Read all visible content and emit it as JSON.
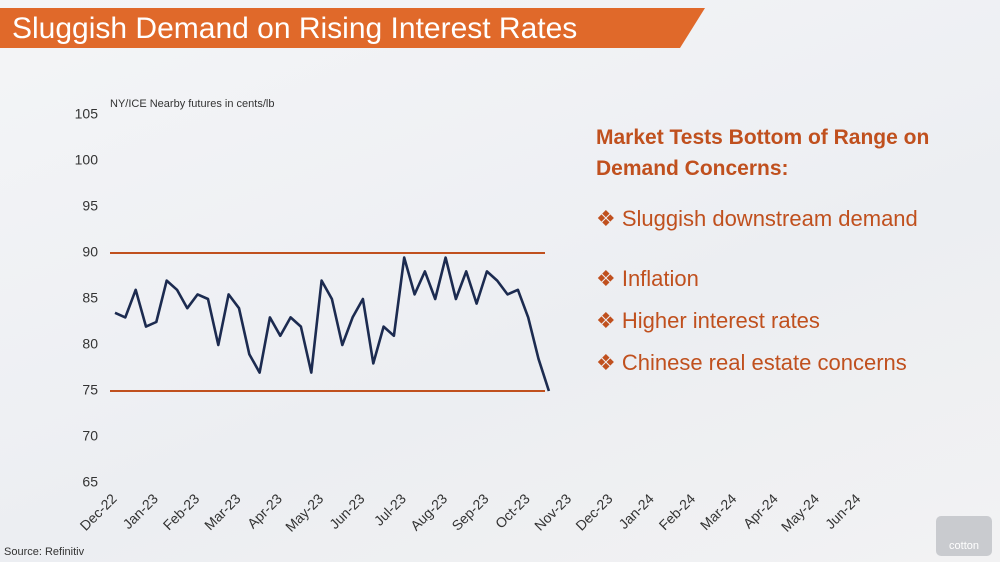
{
  "header": {
    "title": "Sluggish Demand on Rising Interest Rates"
  },
  "chart_data": {
    "type": "line",
    "axis_label": "NY/ICE Nearby futures in cents/lb",
    "categories": [
      "Dec-22",
      null,
      null,
      null,
      "Jan-23",
      null,
      null,
      null,
      "Feb-23",
      null,
      null,
      null,
      "Mar-23",
      null,
      null,
      null,
      "Apr-23",
      null,
      null,
      null,
      "May-23",
      null,
      null,
      null,
      "Jun-23",
      null,
      null,
      null,
      "Jul-23",
      null,
      null,
      null,
      "Aug-23",
      null,
      null,
      null,
      "Sep-23",
      null,
      null,
      null,
      "Oct-23",
      null,
      null,
      null,
      "Nov-23",
      null,
      null,
      null,
      "Dec-23",
      null,
      null,
      null,
      "Jan-24",
      null,
      null,
      null,
      "Feb-24",
      null,
      null,
      null,
      "Mar-24",
      null,
      null,
      null,
      "Apr-24",
      null,
      null,
      null,
      "May-24",
      null,
      null,
      null,
      "Jun-24"
    ],
    "series": [
      {
        "name": "NY/ICE Nearby futures",
        "color": "#1c2b50",
        "values": [
          83.5,
          83,
          86,
          82,
          82.5,
          87,
          86,
          84,
          85.5,
          85,
          80,
          85.5,
          84,
          79,
          77,
          83,
          81,
          83,
          82,
          77,
          87,
          85,
          80,
          83,
          85,
          78,
          82,
          81,
          89.5,
          85.5,
          88,
          85,
          89.5,
          85,
          88,
          84.5,
          88,
          87,
          85.5,
          86,
          83,
          78.5,
          75,
          null,
          null,
          null,
          null,
          null,
          null,
          null,
          null,
          null,
          null,
          null,
          null,
          null,
          null,
          null,
          null,
          null,
          null,
          null,
          null,
          null,
          null,
          null,
          null,
          null,
          null,
          null,
          null,
          null,
          null
        ]
      }
    ],
    "hlines": [
      90,
      75
    ],
    "hline_color": "#c0501e",
    "ylim": [
      65,
      105
    ],
    "yticks": [
      65,
      70,
      75,
      80,
      85,
      90,
      95,
      100,
      105
    ],
    "source": "Source: Refinitiv"
  },
  "panel": {
    "heading": "Market Tests Bottom of Range on Demand Concerns:",
    "bullets": [
      "❖ Sluggish downstream demand",
      "❖ Inflation",
      "❖ Higher interest rates",
      "❖ Chinese real estate concerns"
    ]
  },
  "logo": "cotton"
}
